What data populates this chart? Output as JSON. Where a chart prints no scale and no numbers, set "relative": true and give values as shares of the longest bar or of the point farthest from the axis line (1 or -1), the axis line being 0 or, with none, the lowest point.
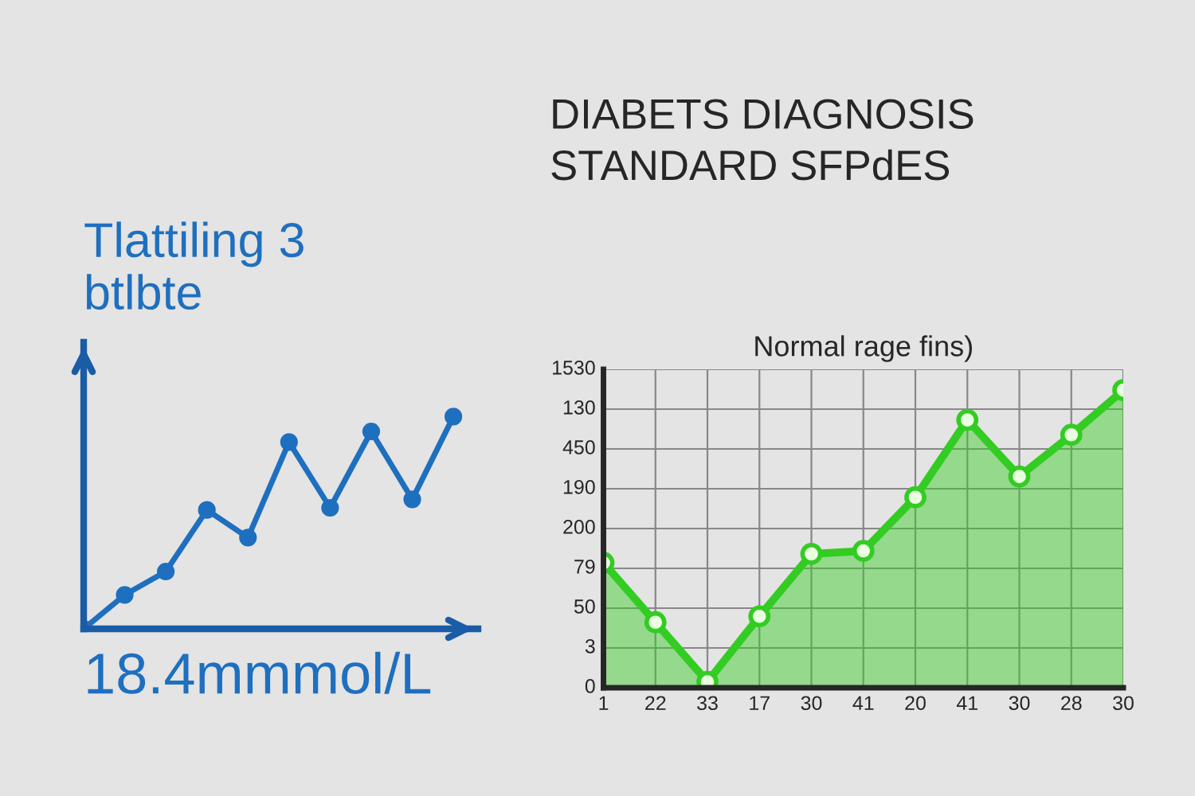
{
  "chart_data": [
    {
      "type": "line",
      "title": "Tlattiling 3\nbtlbte",
      "relative": true,
      "categories": [
        null,
        null,
        null,
        null,
        null,
        null,
        null,
        null,
        null,
        null
      ],
      "series": [
        {
          "color": "#1f6fbf",
          "values": [
            0,
            0.16,
            0.27,
            0.56,
            0.43,
            0.88,
            0.57,
            0.93,
            0.61,
            1
          ]
        }
      ],
      "marker": "circle",
      "annotations": [
        "18.4mmmol/L"
      ]
    },
    {
      "type": "area",
      "title": "DIABETS DIAGNOSIS\nSTANDARD SFPdES",
      "subtitle": "Normal rage fins)",
      "relative": true,
      "categories": [
        "1",
        "22",
        "33",
        "17",
        "30",
        "41",
        "20",
        "41",
        "30",
        "28",
        "30"
      ],
      "series": [
        {
          "color": "#33cc22",
          "values": [
            0.42,
            0.22,
            0.02,
            0.24,
            0.45,
            0.46,
            0.64,
            0.9,
            0.71,
            0.85,
            1
          ]
        }
      ],
      "annotations": [
        "0",
        "3",
        "50",
        "79",
        "200",
        "190",
        "450",
        "130",
        "1530"
      ],
      "marker": "circle",
      "grid": true
    }
  ]
}
